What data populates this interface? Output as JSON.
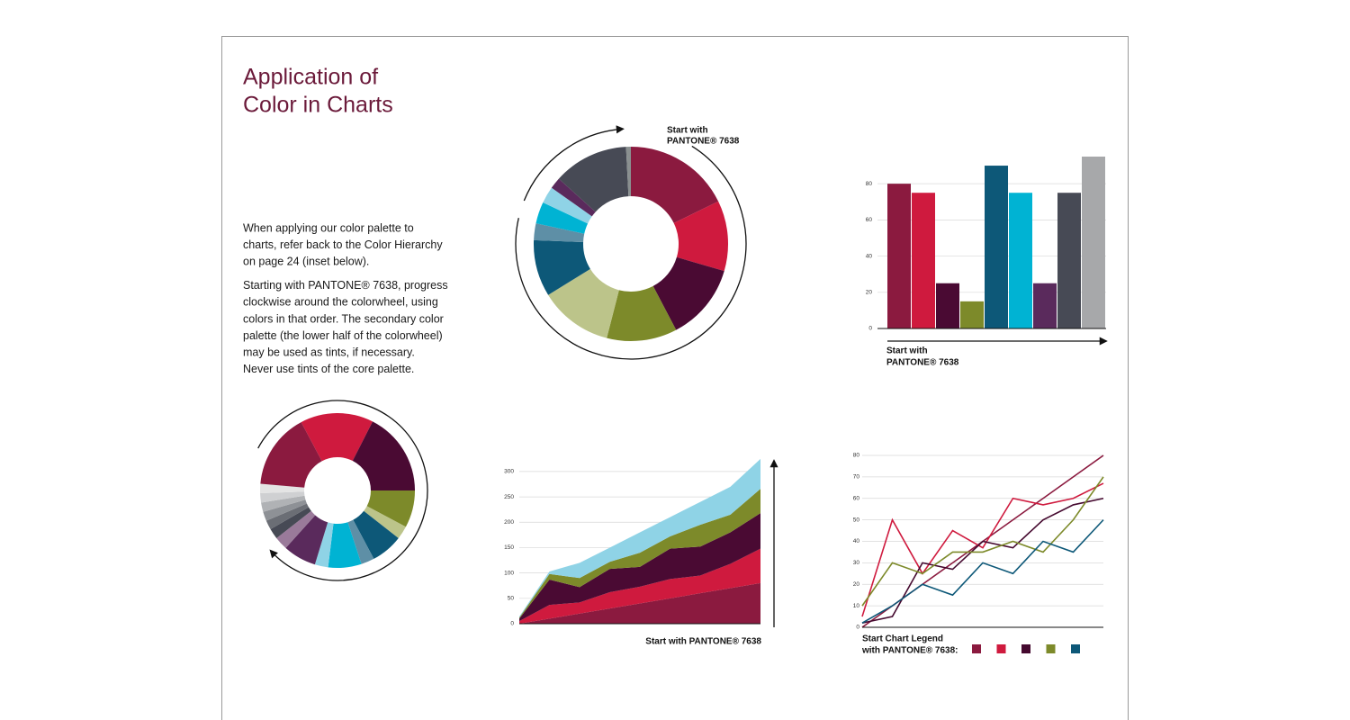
{
  "title": [
    "Application of",
    "Color in Charts"
  ],
  "paragraphs": [
    [
      "When applying our color palette to",
      "charts, refer back to the Color Hierarchy",
      "on page 24 (inset below)."
    ],
    [
      "Starting with PANTONE® 7638, progress",
      "clockwise around the colorwheel, using",
      "colors in that order. The secondary color",
      "palette (the lower half of the colorwheel)",
      "may be used as tints, if necessary.",
      "Never use tints of the core palette."
    ]
  ],
  "chart_data": [
    {
      "type": "pie",
      "annotation": [
        "Start with",
        "PANTONE® 7638"
      ],
      "values": [
        17.8,
        11.7,
        12.8,
        11.7,
        12.2,
        9.4,
        2.8,
        3.6,
        2.8,
        1.9,
        12.5,
        0.8
      ],
      "colors": [
        "#8b1a3f",
        "#cf1a3e",
        "#4a0a33",
        "#7d8a2a",
        "#bcc48a",
        "#0d5878",
        "#5e8fa6",
        "#00b3d3",
        "#8fd3e6",
        "#5a2a5c",
        "#474a55",
        "#8a9090"
      ]
    },
    {
      "type": "bar",
      "annotation": [
        "Start with",
        "PANTONE® 7638"
      ],
      "values": [
        80,
        75,
        25,
        15,
        90,
        75,
        25,
        75,
        95
      ],
      "colors": [
        "#8b1a3f",
        "#cf1a3e",
        "#4a0a33",
        "#7d8a2a",
        "#0d5878",
        "#00b3d3",
        "#5a2a5c",
        "#474a55",
        "#a7a8aa"
      ],
      "ylim": [
        0,
        95
      ],
      "yticks": [
        0,
        20,
        40,
        60,
        80
      ],
      "grid": true
    },
    {
      "type": "area",
      "annotation": [
        "Start with PANTONE® 7638"
      ],
      "stacked": true,
      "series": [
        {
          "color": "#8b1a3f",
          "values": [
            0,
            10,
            20,
            30,
            40,
            50,
            60,
            70,
            80
          ]
        },
        {
          "color": "#cf1a3e",
          "values": [
            5,
            27,
            22,
            32,
            33,
            38,
            35,
            48,
            68
          ]
        },
        {
          "color": "#4a0a33",
          "values": [
            5,
            50,
            30,
            46,
            39,
            60,
            57,
            62,
            70
          ]
        },
        {
          "color": "#7d8a2a",
          "values": [
            2,
            11,
            18,
            14,
            28,
            24,
            43,
            35,
            48
          ]
        },
        {
          "color": "#8fd3e6",
          "values": [
            2,
            5,
            30,
            28,
            40,
            38,
            45,
            55,
            59
          ]
        }
      ],
      "ylim": [
        0,
        330
      ],
      "yticks": [
        0,
        50,
        100,
        150,
        200,
        250,
        300
      ],
      "grid": true
    },
    {
      "type": "line",
      "annotation": [
        "Start Chart Legend",
        "with PANTONE® 7638:"
      ],
      "series": [
        {
          "color": "#8b1a3f",
          "values": [
            0,
            10,
            20,
            30,
            40,
            50,
            60,
            70,
            80
          ]
        },
        {
          "color": "#cf1a3e",
          "values": [
            5,
            50,
            25,
            45,
            37,
            60,
            57,
            60,
            67
          ]
        },
        {
          "color": "#45092f",
          "values": [
            2,
            5,
            30,
            27,
            40,
            37,
            50,
            57,
            60
          ]
        },
        {
          "color": "#7d8a2a",
          "values": [
            10,
            30,
            25,
            35,
            35,
            40,
            35,
            50,
            70
          ]
        },
        {
          "color": "#0d5878",
          "values": [
            2,
            10,
            20,
            15,
            30,
            25,
            40,
            35,
            50
          ]
        }
      ],
      "ylim": [
        0,
        80
      ],
      "yticks": [
        0,
        10,
        20,
        30,
        40,
        50,
        60,
        70,
        80
      ],
      "grid": true
    },
    {
      "type": "pie",
      "values": [
        55,
        63,
        28,
        10,
        24,
        10,
        25,
        10,
        25,
        10,
        8,
        7,
        7,
        7,
        7,
        7,
        57
      ],
      "colors": [
        "#cf1a3e",
        "#4a0a33",
        "#7d8a2a",
        "#bcc48a",
        "#0d5878",
        "#5e8fa6",
        "#00b3d3",
        "#8fd3e6",
        "#5a2a5c",
        "#9a7a9a",
        "#474a55",
        "#6b6e75",
        "#8e9196",
        "#b0b2b5",
        "#cfd0d2",
        "#e4e4e4",
        "#8b1a3f"
      ]
    }
  ]
}
